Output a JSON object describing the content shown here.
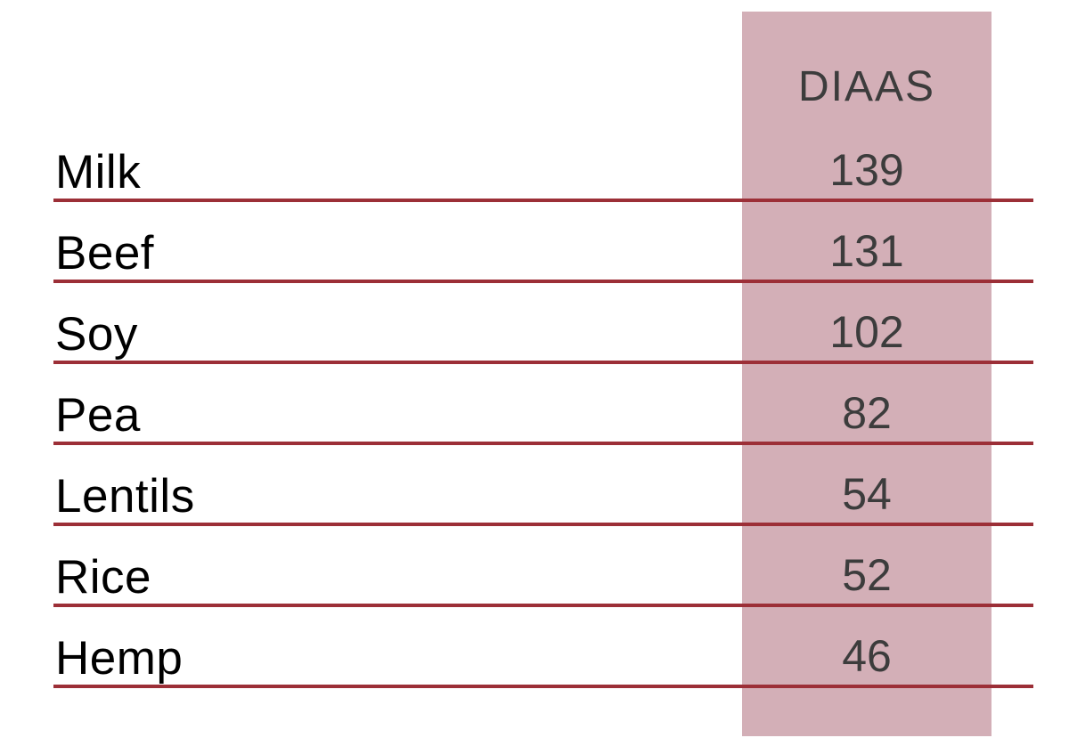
{
  "chart_data": {
    "type": "table",
    "columns": [
      "",
      "DIAAS"
    ],
    "rows": [
      [
        "Milk",
        139
      ],
      [
        "Beef",
        131
      ],
      [
        "Soy",
        102
      ],
      [
        "Pea",
        82
      ],
      [
        "Lentils",
        54
      ],
      [
        "Rice",
        52
      ],
      [
        "Hemp",
        46
      ]
    ],
    "layout": {
      "value_column_highlighted": true,
      "row_separator_lines": true,
      "grid": "horizontal-rules-only",
      "legend": "none"
    }
  },
  "table": {
    "header_label": "DIAAS",
    "rows": [
      {
        "label": "Milk",
        "value": "139"
      },
      {
        "label": "Beef",
        "value": "131"
      },
      {
        "label": "Soy",
        "value": "102"
      },
      {
        "label": "Pea",
        "value": "82"
      },
      {
        "label": "Lentils",
        "value": "54"
      },
      {
        "label": "Rice",
        "value": "52"
      },
      {
        "label": "Hemp",
        "value": "46"
      }
    ]
  },
  "colors": {
    "band": "#d3afb7",
    "line": "#9c2f37",
    "header_text": "#3c3c3c",
    "label_text": "#000000",
    "value_text": "#3c3c3c",
    "background": "#ffffff"
  }
}
